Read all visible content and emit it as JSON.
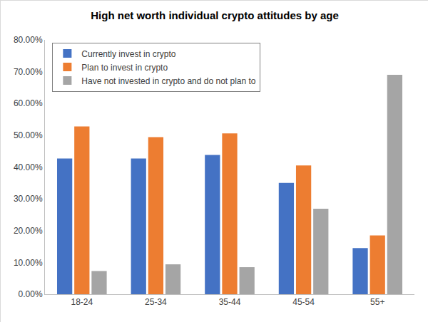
{
  "chart_data": {
    "type": "bar",
    "title": "High net worth individual crypto attitudes by age",
    "categories": [
      "18-24",
      "25-34",
      "35-44",
      "45-54",
      "55+"
    ],
    "series": [
      {
        "name": "Currently invest in crypto",
        "color": "#4472c4",
        "values": [
          42.7,
          42.7,
          43.8,
          35.0,
          14.5
        ]
      },
      {
        "name": "Plan to invest in crypto",
        "color": "#ed7d31",
        "values": [
          52.8,
          49.4,
          50.6,
          40.5,
          18.5
        ]
      },
      {
        "name": "Have not invested in crypto and do not plan to",
        "color": "#a5a5a5",
        "values": [
          7.3,
          9.4,
          8.5,
          26.9,
          69.0
        ]
      }
    ],
    "ylim": [
      0,
      80
    ],
    "yticks": [
      {
        "value": 0,
        "label": "0.00%"
      },
      {
        "value": 10,
        "label": "10.00%"
      },
      {
        "value": 20,
        "label": "20.00%"
      },
      {
        "value": 30,
        "label": "30.00%"
      },
      {
        "value": 40,
        "label": "40.00%"
      },
      {
        "value": 50,
        "label": "50.00%"
      },
      {
        "value": 60,
        "label": "60.00%"
      },
      {
        "value": 70,
        "label": "70.00%"
      },
      {
        "value": 80,
        "label": "80.00%"
      }
    ],
    "grid": false,
    "legend": "upper left"
  }
}
